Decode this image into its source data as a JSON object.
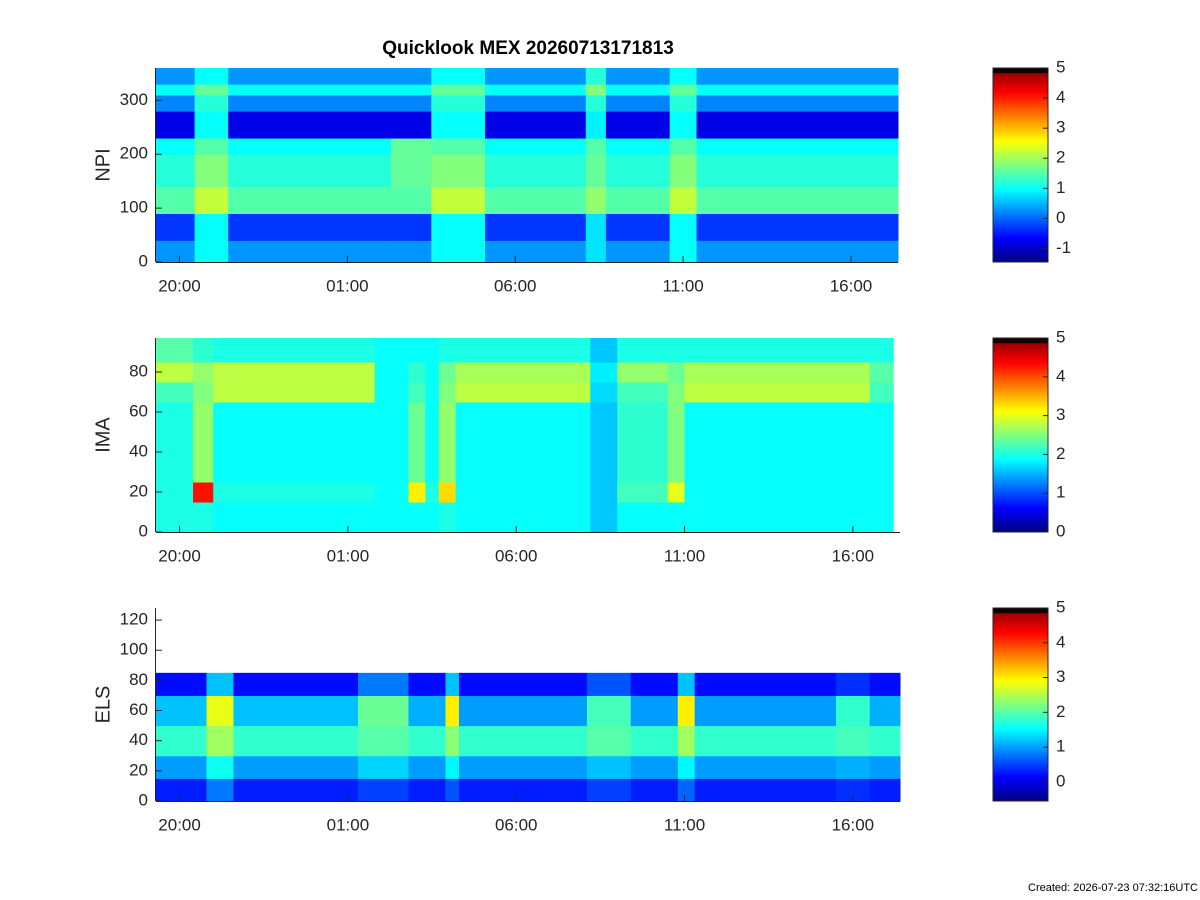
{
  "chart_data": [
    {
      "type": "heatmap",
      "title": "Quicklook MEX 20260713171813",
      "ylabel": "NPI",
      "colormap": "jet",
      "x": [
        -0.7,
        0.45,
        1.45,
        6.3,
        7.5,
        9.1,
        12.1,
        12.7,
        14.6,
        15.4,
        21.4
      ],
      "y": [
        0,
        40,
        90,
        140,
        200,
        230,
        280,
        310,
        330,
        360
      ],
      "z": [
        [
          0.3,
          1.0,
          0.3,
          0.3,
          1.0,
          0.3,
          0.8,
          0.3,
          1.0,
          0.3
        ],
        [
          -0.3,
          1.0,
          -0.3,
          -0.3,
          1.0,
          -0.3,
          0.8,
          -0.3,
          1.0,
          -0.3
        ],
        [
          1.5,
          2.2,
          1.5,
          1.5,
          2.2,
          1.5,
          1.9,
          1.5,
          2.2,
          1.5
        ],
        [
          1.2,
          1.8,
          1.2,
          1.6,
          1.8,
          1.2,
          1.6,
          1.2,
          1.8,
          1.2
        ],
        [
          1.0,
          1.5,
          1.0,
          1.6,
          1.5,
          1.0,
          1.5,
          1.0,
          1.5,
          1.0
        ],
        [
          -0.8,
          1.0,
          -0.8,
          -0.8,
          1.0,
          -0.8,
          0.9,
          -0.8,
          1.0,
          -0.8
        ],
        [
          0.2,
          1.2,
          0.2,
          0.2,
          1.2,
          0.2,
          1.2,
          0.2,
          1.2,
          0.2
        ],
        [
          1.0,
          1.6,
          1.0,
          1.0,
          1.6,
          1.0,
          1.8,
          1.0,
          1.6,
          1.0
        ],
        [
          0.3,
          1.0,
          0.3,
          0.3,
          1.0,
          0.3,
          1.2,
          0.3,
          1.0,
          0.3
        ]
      ],
      "xlim": [
        -0.7,
        21.4
      ],
      "xticks": [
        {
          "value": 0,
          "label": "20:00"
        },
        {
          "value": 5,
          "label": "01:00"
        },
        {
          "value": 10,
          "label": "06:00"
        },
        {
          "value": 15,
          "label": "11:00"
        },
        {
          "value": 20,
          "label": "16:00"
        }
      ],
      "ylim": [
        0,
        360
      ],
      "yticks": [
        0,
        100,
        200,
        300
      ],
      "clim": [
        -1.45,
        5
      ],
      "cticks": [
        -1,
        0,
        1,
        2,
        3,
        4,
        5
      ]
    },
    {
      "type": "heatmap",
      "ylabel": "IMA",
      "colormap": "jet",
      "x": [
        -0.7,
        0.4,
        1.0,
        5.8,
        6.8,
        7.3,
        7.7,
        8.2,
        12.2,
        13.0,
        14.5,
        15.0,
        20.5,
        21.2
      ],
      "y": [
        0,
        15,
        25,
        65,
        75,
        85,
        97
      ],
      "z": [
        [
          2.0,
          2.0,
          1.9,
          1.9,
          1.9,
          1.9,
          2.0,
          1.9,
          1.6,
          1.9,
          1.9,
          1.9,
          1.9
        ],
        [
          2.0,
          4.3,
          2.0,
          1.9,
          3.2,
          2.0,
          3.3,
          1.9,
          1.6,
          2.2,
          3.0,
          1.9,
          1.9
        ],
        [
          2.0,
          2.6,
          1.9,
          1.9,
          2.4,
          1.9,
          2.6,
          1.9,
          1.6,
          2.1,
          2.5,
          1.9,
          1.9
        ],
        [
          2.2,
          2.5,
          2.8,
          1.9,
          2.2,
          1.9,
          2.5,
          2.8,
          1.7,
          2.2,
          2.5,
          2.8,
          2.2
        ],
        [
          2.8,
          2.6,
          2.8,
          1.9,
          2.1,
          1.9,
          2.4,
          2.7,
          1.8,
          2.6,
          2.4,
          2.7,
          2.3
        ],
        [
          2.3,
          2.1,
          2.0,
          1.9,
          1.9,
          1.9,
          2.0,
          2.0,
          1.6,
          2.0,
          2.0,
          2.0,
          2.0
        ]
      ],
      "xlim": [
        -0.7,
        21.4
      ],
      "xticks": [
        {
          "value": 0,
          "label": "20:00"
        },
        {
          "value": 5,
          "label": "01:00"
        },
        {
          "value": 10,
          "label": "06:00"
        },
        {
          "value": 15,
          "label": "11:00"
        },
        {
          "value": 20,
          "label": "16:00"
        }
      ],
      "ylim": [
        0,
        97
      ],
      "yticks": [
        0,
        20,
        40,
        60,
        80
      ],
      "clim": [
        0,
        5
      ],
      "cticks": [
        0,
        1,
        2,
        3,
        4,
        5
      ]
    },
    {
      "type": "heatmap",
      "ylabel": "ELS",
      "colormap": "jet",
      "x": [
        -0.7,
        0.8,
        1.6,
        5.3,
        6.8,
        7.9,
        8.3,
        12.1,
        13.4,
        14.8,
        15.3,
        19.5,
        20.5,
        21.4
      ],
      "y": [
        0,
        15,
        30,
        50,
        70,
        85,
        128
      ],
      "z": [
        [
          0.3,
          0.8,
          0.3,
          0.5,
          0.3,
          0.6,
          0.3,
          0.5,
          0.3,
          0.7,
          0.3,
          0.4,
          0.3
        ],
        [
          1.0,
          1.6,
          1.0,
          1.3,
          1.0,
          1.5,
          1.0,
          1.2,
          1.0,
          1.5,
          1.0,
          1.1,
          1.0
        ],
        [
          1.8,
          2.4,
          1.8,
          2.0,
          1.8,
          2.3,
          1.8,
          2.0,
          1.8,
          2.4,
          1.8,
          1.9,
          1.8
        ],
        [
          1.2,
          2.8,
          1.2,
          2.1,
          1.1,
          3.0,
          1.0,
          1.9,
          1.0,
          3.0,
          1.0,
          1.8,
          1.1
        ],
        [
          0.2,
          1.2,
          0.2,
          0.8,
          0.2,
          1.2,
          0.2,
          0.6,
          0.2,
          1.2,
          0.2,
          0.4,
          0.2
        ],
        [
          null,
          null,
          null,
          null,
          null,
          null,
          null,
          null,
          null,
          null,
          null,
          null,
          null
        ]
      ],
      "xlim": [
        -0.7,
        21.4
      ],
      "xticks": [
        {
          "value": 0,
          "label": "20:00"
        },
        {
          "value": 5,
          "label": "01:00"
        },
        {
          "value": 10,
          "label": "06:00"
        },
        {
          "value": 15,
          "label": "11:00"
        },
        {
          "value": 20,
          "label": "16:00"
        }
      ],
      "ylim": [
        0,
        128
      ],
      "yticks": [
        0,
        20,
        40,
        60,
        80,
        100,
        120
      ],
      "clim": [
        -0.55,
        5
      ],
      "cticks": [
        0,
        1,
        2,
        3,
        4,
        5
      ]
    }
  ],
  "footer": "Created: 2026-07-23 07:32:16UTC"
}
